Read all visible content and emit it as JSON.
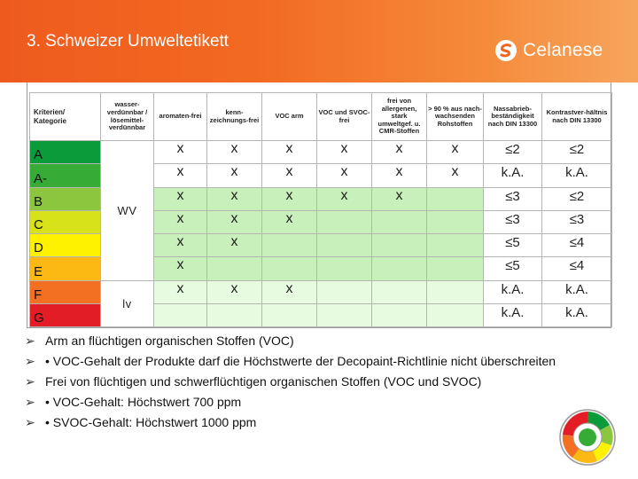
{
  "header": {
    "title": "3. Schweizer Umweltetikett",
    "logo_text": "Celanese"
  },
  "table": {
    "columns": [
      "Kriterien/ Kategorie",
      "wasser-verdünnbar / lösemittel-verdünnbar",
      "aromaten-frei",
      "kenn-zeichnungs-frei",
      "VOC arm",
      "VOC und SVOC-frei",
      "frei von allergenen, stark umweltgef. u. CMR-Stoffen",
      "> 90 % aus nach-wachsenden Rohstoffen",
      "Nassabrieb-beständigkeit nach DIN 13300",
      "Kontrastver-hältnis nach DIN 13300"
    ],
    "rows": [
      {
        "grade": "A",
        "color": "#0b9b3a",
        "marks": [
          "x",
          "x",
          "x",
          "x",
          "x",
          "x"
        ],
        "abrasion": "≤2",
        "contrast": "≤2"
      },
      {
        "grade": "A-",
        "color": "#36ab36",
        "marks": [
          "x",
          "x",
          "x",
          "x",
          "x",
          "x"
        ],
        "abrasion": "k.A.",
        "contrast": "k.A."
      },
      {
        "grade": "B",
        "color": "#8cc63e",
        "marks": [
          "x",
          "x",
          "x",
          "x",
          "x",
          ""
        ],
        "abrasion": "≤3",
        "contrast": "≤2"
      },
      {
        "grade": "C",
        "color": "#d7e21a",
        "marks": [
          "x",
          "x",
          "x",
          "",
          "",
          ""
        ],
        "abrasion": "≤3",
        "contrast": "≤3"
      },
      {
        "grade": "D",
        "color": "#fff200",
        "marks": [
          "x",
          "x",
          "",
          "",
          "",
          ""
        ],
        "abrasion": "≤5",
        "contrast": "≤4"
      },
      {
        "grade": "E",
        "color": "#fdb913",
        "marks": [
          "x",
          "",
          "",
          "",
          "",
          ""
        ],
        "abrasion": "≤5",
        "contrast": "≤4"
      },
      {
        "grade": "F",
        "color": "#f36f21",
        "marks": [
          "x",
          "x",
          "x",
          "",
          "",
          ""
        ],
        "abrasion": "k.A.",
        "contrast": "k.A."
      },
      {
        "grade": "G",
        "color": "#e31d25",
        "marks": [
          "",
          "",
          "",
          "",
          "",
          ""
        ],
        "abrasion": "k.A.",
        "contrast": "k.A."
      }
    ],
    "solvent_groups": [
      {
        "label": "WV"
      },
      {
        "label": "lv"
      }
    ],
    "mark_colors": {
      "header_bg": "#ffffff",
      "mark_bg_ab": "#ffffff",
      "mark_bg_cde": "#c7f0ba",
      "mark_bg_fg": "#e7fbe0"
    }
  },
  "bullets": [
    "Arm an flüchtigen organischen Stoffen (VOC)",
    "• VOC-Gehalt der Produkte darf die Höchstwerte der Decopaint-Richtlinie nicht überschreiten",
    "Frei von flüchtigen und schwerflüchtigen organischen Stoffen (VOC und SVOC)",
    "• VOC-Gehalt: Höchstwert 700 ppm",
    "• SVOC-Gehalt: Höchstwert 1000 ppm"
  ],
  "icons": {
    "bullet": "arrow-bullet-icon",
    "logo": "celanese-logo-icon",
    "seal": "environment-label-seal-icon"
  }
}
